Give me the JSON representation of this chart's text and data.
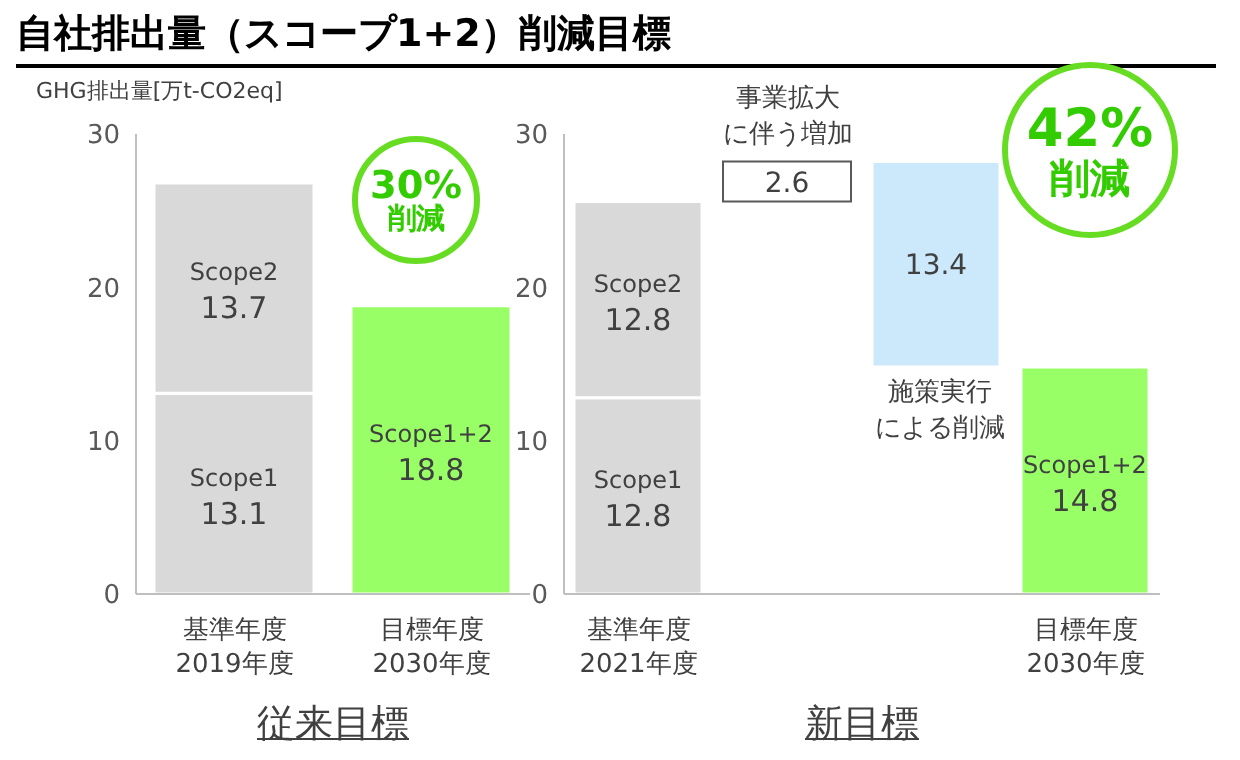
{
  "chart_data": [
    {
      "type": "bar",
      "title": "自社排出量（スコープ1+2）削減目標",
      "ylabel": "GHG排出量[万t-CO2eq]",
      "xlabel": "従来目標",
      "stacked": true,
      "data_labels": true,
      "categories": [
        "基準年度\n2019年度",
        "目標年度\n2030年度"
      ],
      "ylim": [
        0,
        30
      ],
      "yticks": [
        0,
        10,
        20,
        30
      ],
      "series": [
        {
          "name": "Scope1",
          "color": "#d9d9d9",
          "values": [
            13.1,
            null
          ]
        },
        {
          "name": "Scope2",
          "color": "#d9d9d9",
          "values": [
            13.7,
            null
          ]
        },
        {
          "name": "Scope1+2",
          "color": "#99ff66",
          "values": [
            null,
            18.8
          ]
        }
      ],
      "annotations": [
        "30%\n削減"
      ]
    },
    {
      "type": "bar",
      "xlabel": "新目標",
      "stacked": true,
      "data_labels": true,
      "categories": [
        "基準年度\n2021年度",
        null,
        null,
        "目標年度\n2030年度"
      ],
      "ylim": [
        0,
        30
      ],
      "yticks": [
        0,
        10,
        20,
        30
      ],
      "series": [
        {
          "name": "Scope1",
          "color": "#d9d9d9",
          "values": [
            12.8,
            null,
            null,
            null
          ]
        },
        {
          "name": "Scope2",
          "color": "#d9d9d9",
          "values": [
            12.8,
            null,
            null,
            null
          ]
        },
        {
          "color": "#ffffff",
          "values": [
            null,
            2.6,
            null,
            null
          ],
          "base": [
            null,
            25.6,
            null,
            null
          ]
        },
        {
          "color": "#cce9fb",
          "values": [
            null,
            null,
            13.4,
            null
          ],
          "base": [
            null,
            null,
            14.8,
            null
          ]
        },
        {
          "name": "Scope1+2",
          "color": "#99ff66",
          "values": [
            null,
            null,
            null,
            14.8
          ]
        }
      ],
      "annotations": [
        "事業拡大",
        "に伴う増加",
        "施策実行",
        "による削減",
        "42%\n削減"
      ]
    }
  ]
}
